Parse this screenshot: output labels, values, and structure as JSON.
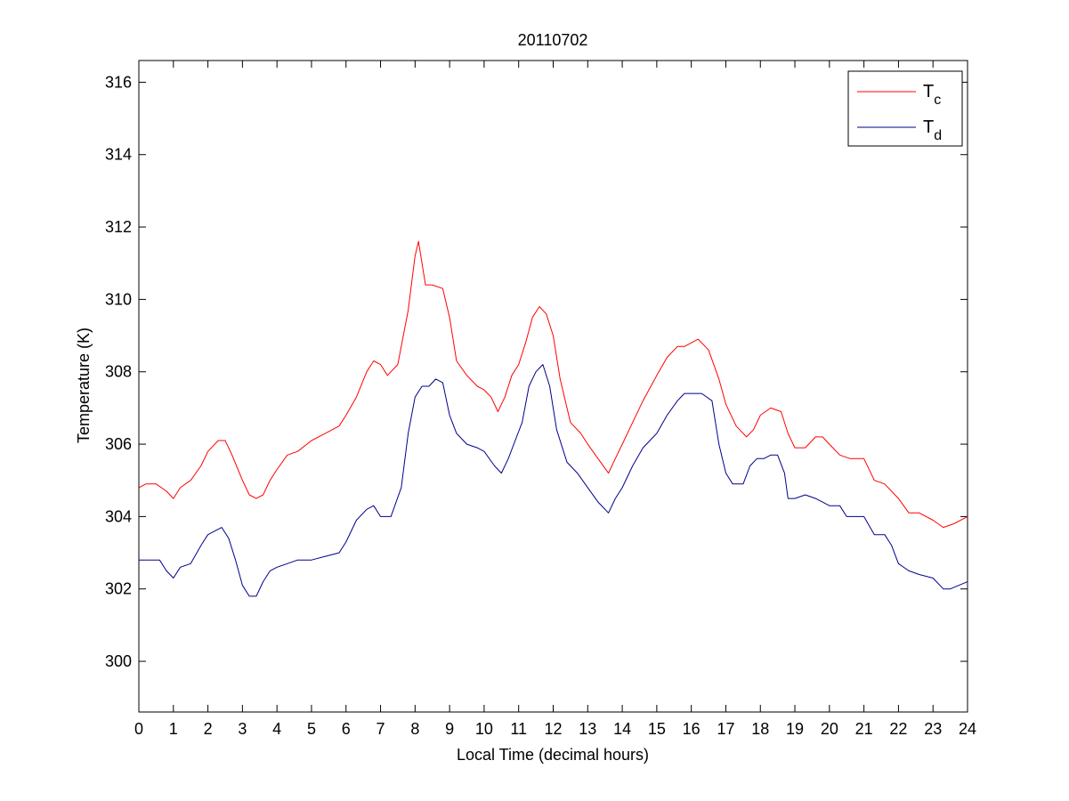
{
  "chart_data": {
    "type": "line",
    "title": "20110702",
    "xlabel": "Local Time (decimal hours)",
    "ylabel": "Temperature (K)",
    "xlim": [
      0,
      24
    ],
    "ylim": [
      298.6,
      316.6
    ],
    "xticks": [
      0,
      1,
      2,
      3,
      4,
      5,
      6,
      7,
      8,
      9,
      10,
      11,
      12,
      13,
      14,
      15,
      16,
      17,
      18,
      19,
      20,
      21,
      22,
      23,
      24
    ],
    "yticks": [
      300,
      302,
      304,
      306,
      308,
      310,
      312,
      314,
      316
    ],
    "grid": false,
    "legend_position": "top-right",
    "series": [
      {
        "name": "Tc",
        "legend_main": "T",
        "legend_sub": "c",
        "color": "#ff0000",
        "x": [
          0,
          0.2,
          0.5,
          0.8,
          1.0,
          1.2,
          1.5,
          1.8,
          2.0,
          2.3,
          2.5,
          2.7,
          3.0,
          3.2,
          3.4,
          3.6,
          3.8,
          4.0,
          4.3,
          4.6,
          5.0,
          5.4,
          5.8,
          6.0,
          6.3,
          6.6,
          6.8,
          7.0,
          7.2,
          7.5,
          7.8,
          8.0,
          8.1,
          8.3,
          8.5,
          8.8,
          9.0,
          9.2,
          9.5,
          9.8,
          10.0,
          10.2,
          10.4,
          10.6,
          10.8,
          11.0,
          11.2,
          11.4,
          11.6,
          11.8,
          12.0,
          12.2,
          12.5,
          12.8,
          13.0,
          13.3,
          13.6,
          13.8,
          14.0,
          14.3,
          14.6,
          15.0,
          15.3,
          15.6,
          15.8,
          16.0,
          16.2,
          16.5,
          16.8,
          17.0,
          17.3,
          17.6,
          17.8,
          18.0,
          18.3,
          18.6,
          18.8,
          19.0,
          19.3,
          19.6,
          19.8,
          20.0,
          20.3,
          20.6,
          21.0,
          21.3,
          21.6,
          22.0,
          22.3,
          22.6,
          23.0,
          23.3,
          23.6,
          24.0
        ],
        "y": [
          304.8,
          304.9,
          304.9,
          304.7,
          304.5,
          304.8,
          305.0,
          305.4,
          305.8,
          306.1,
          306.1,
          305.7,
          305.0,
          304.6,
          304.5,
          304.6,
          305.0,
          305.3,
          305.7,
          305.8,
          306.1,
          306.3,
          306.5,
          306.8,
          307.3,
          308.0,
          308.3,
          308.2,
          307.9,
          308.2,
          309.7,
          311.2,
          311.6,
          310.4,
          310.4,
          310.3,
          309.5,
          308.3,
          307.9,
          307.6,
          307.5,
          307.3,
          306.9,
          307.3,
          307.9,
          308.2,
          308.8,
          309.5,
          309.8,
          309.6,
          309.0,
          307.8,
          306.6,
          306.3,
          306.0,
          305.6,
          305.2,
          305.6,
          306.0,
          306.6,
          307.2,
          307.9,
          308.4,
          308.7,
          308.7,
          308.8,
          308.9,
          308.6,
          307.8,
          307.1,
          306.5,
          306.2,
          306.4,
          306.8,
          307.0,
          306.9,
          306.3,
          305.9,
          305.9,
          306.2,
          306.2,
          306.0,
          305.7,
          305.6,
          305.6,
          305.0,
          304.9,
          304.5,
          304.1,
          304.1,
          303.9,
          303.7,
          303.8,
          304.0
        ]
      },
      {
        "name": "Td",
        "legend_main": "T",
        "legend_sub": "d",
        "color": "#00008b",
        "x": [
          0,
          0.3,
          0.6,
          0.8,
          1.0,
          1.2,
          1.5,
          1.8,
          2.0,
          2.2,
          2.4,
          2.6,
          2.8,
          3.0,
          3.2,
          3.4,
          3.6,
          3.8,
          4.0,
          4.3,
          4.6,
          5.0,
          5.4,
          5.8,
          6.0,
          6.3,
          6.6,
          6.8,
          7.0,
          7.3,
          7.6,
          7.8,
          8.0,
          8.2,
          8.4,
          8.6,
          8.8,
          9.0,
          9.2,
          9.5,
          9.8,
          10.0,
          10.3,
          10.5,
          10.7,
          10.9,
          11.1,
          11.3,
          11.5,
          11.7,
          11.9,
          12.1,
          12.4,
          12.7,
          13.0,
          13.3,
          13.6,
          13.8,
          14.0,
          14.3,
          14.6,
          15.0,
          15.3,
          15.6,
          15.8,
          16.0,
          16.3,
          16.6,
          16.8,
          17.0,
          17.2,
          17.5,
          17.7,
          17.9,
          18.1,
          18.3,
          18.5,
          18.7,
          18.8,
          19.0,
          19.3,
          19.6,
          19.8,
          20.0,
          20.3,
          20.5,
          20.7,
          21.0,
          21.3,
          21.6,
          21.8,
          22.0,
          22.3,
          22.6,
          23.0,
          23.3,
          23.5,
          24.0
        ],
        "y": [
          302.8,
          302.8,
          302.8,
          302.5,
          302.3,
          302.6,
          302.7,
          303.2,
          303.5,
          303.6,
          303.7,
          303.4,
          302.8,
          302.1,
          301.8,
          301.8,
          302.2,
          302.5,
          302.6,
          302.7,
          302.8,
          302.8,
          302.9,
          303.0,
          303.3,
          303.9,
          304.2,
          304.3,
          304.0,
          304.0,
          304.8,
          306.3,
          307.3,
          307.6,
          307.6,
          307.8,
          307.7,
          306.8,
          306.3,
          306.0,
          305.9,
          305.8,
          305.4,
          305.2,
          305.6,
          306.1,
          306.6,
          307.6,
          308.0,
          308.2,
          307.6,
          306.4,
          305.5,
          305.2,
          304.8,
          304.4,
          304.1,
          304.5,
          304.8,
          305.4,
          305.9,
          306.3,
          306.8,
          307.2,
          307.4,
          307.4,
          307.4,
          307.2,
          306.0,
          305.2,
          304.9,
          304.9,
          305.4,
          305.6,
          305.6,
          305.7,
          305.7,
          305.2,
          304.5,
          304.5,
          304.6,
          304.5,
          304.4,
          304.3,
          304.3,
          304.0,
          304.0,
          304.0,
          303.5,
          303.5,
          303.2,
          302.7,
          302.5,
          302.4,
          302.3,
          302.0,
          302.0,
          302.2
        ]
      }
    ]
  }
}
